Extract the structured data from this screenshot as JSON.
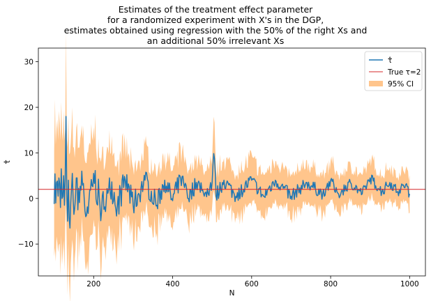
{
  "chart_data": {
    "type": "line",
    "title": [
      "Estimates of the treatment effect parameter",
      "for a randomized experiment with X's in the DGP,",
      "estimates obtained using regression with the 50% of the right Xs and",
      "an additional 50% irrelevant Xs"
    ],
    "xlabel": "N",
    "ylabel": "τ̂",
    "xlim": [
      60,
      1040
    ],
    "ylim": [
      -17,
      33
    ],
    "xticks": [
      200,
      400,
      600,
      800,
      1000
    ],
    "yticks": [
      -10,
      0,
      10,
      20,
      30
    ],
    "grid": false,
    "legend_position": "top-right",
    "colors": {
      "estimate": "#1f77b4",
      "true_value": "#d62728",
      "ci": "#ffbb78"
    },
    "x_range": {
      "start": 100,
      "end": 1000,
      "step": 2
    },
    "anchors_x": [
      100,
      102,
      104,
      106,
      110,
      112,
      116,
      118,
      120,
      124,
      126,
      128,
      130,
      132,
      134,
      136,
      140,
      146,
      150,
      156,
      160,
      170,
      180,
      200,
      220,
      240,
      260,
      280,
      300,
      330,
      360,
      380,
      400,
      420,
      440,
      460,
      480,
      500,
      505,
      510,
      530,
      560,
      600,
      630,
      660,
      700,
      740,
      780,
      800,
      820,
      850,
      880,
      900,
      930,
      950,
      970,
      990,
      1000
    ],
    "anchors_y": [
      -1.2,
      5.4,
      -1.0,
      3.5,
      0.5,
      4.5,
      -2.0,
      6.5,
      0.0,
      5.0,
      -1.5,
      4.5,
      18.0,
      1.0,
      -5.0,
      4.0,
      -6.5,
      5.5,
      -3.5,
      4.5,
      -2.5,
      6.0,
      -4.0,
      5.5,
      -3.0,
      4.5,
      -1.5,
      4.0,
      -1.5,
      4.0,
      -1.5,
      4.0,
      -0.5,
      4.5,
      0.0,
      3.5,
      0.5,
      3.5,
      9.8,
      0.5,
      4.0,
      0.5,
      4.0,
      0.5,
      4.0,
      0.5,
      3.5,
      1.0,
      4.0,
      1.0,
      3.5,
      1.0,
      4.5,
      1.5,
      3.5,
      1.5,
      3.0,
      1.0
    ],
    "noise_amplitude": [
      4.0,
      4.0,
      2.8,
      2.2,
      1.8,
      1.5,
      1.4,
      1.3,
      1.2,
      1.1
    ],
    "ci_halfwidth": [
      13.0,
      9.5,
      6.5,
      5.5,
      4.8,
      4.3,
      4.0,
      3.7,
      3.4,
      3.2
    ],
    "true_tau": 2,
    "legend": [
      {
        "key": "estimate",
        "label": "τ̂"
      },
      {
        "key": "true_value",
        "label": "True τ=2"
      },
      {
        "key": "ci",
        "label": "95% CI"
      }
    ]
  }
}
